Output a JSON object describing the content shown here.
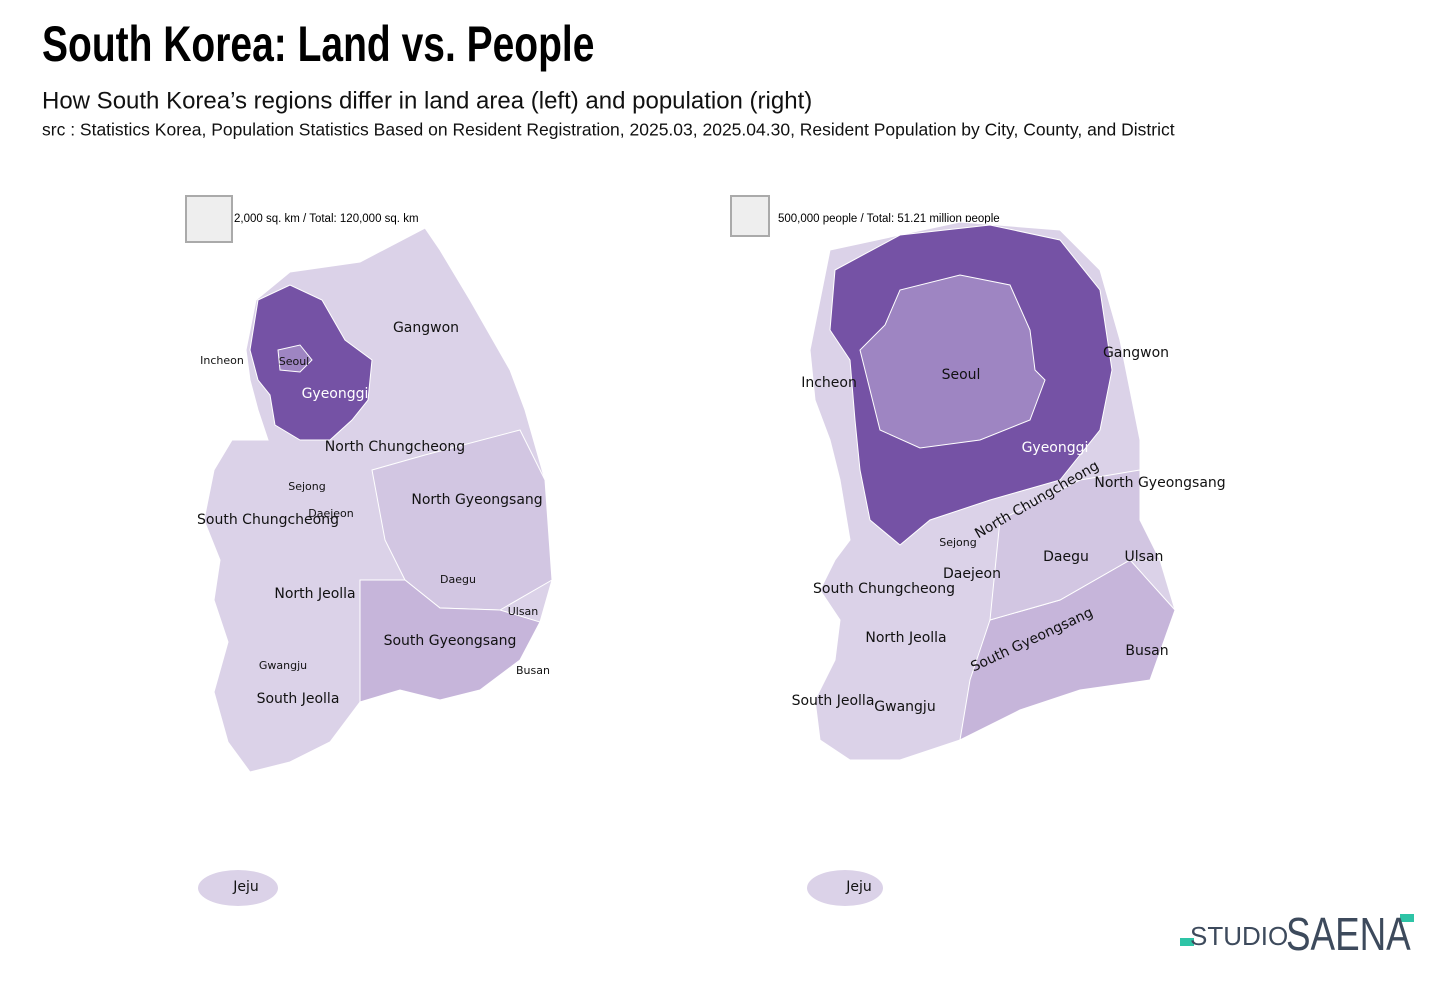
{
  "header": {
    "title": "South Korea: Land vs. People",
    "subtitle": "How South Korea’s regions differ in land area (left) and population (right)",
    "source": "src : Statistics Korea, Population Statistics Based on Resident Registration, 2025.03, 2025.04.30, Resident Population by City, County, and District"
  },
  "maps": [
    {
      "legend": "2,000 sq. km / Total: 120,000 sq. km",
      "regions": [
        "Gangwon",
        "Incheon",
        "Seoul",
        "Gyeonggi",
        "North Chungcheong",
        "Sejong",
        "Daejeon",
        "South Chungcheong",
        "North Gyeongsang",
        "North Jeolla",
        "Daegu",
        "Ulsan",
        "South Gyeongsang",
        "Gwangju",
        "Busan",
        "South Jeolla",
        "Jeju"
      ]
    },
    {
      "legend": "500,000 people / Total: 51.21 million people",
      "regions": [
        "Seoul",
        "Gyeonggi",
        "Gangwon",
        "Incheon",
        "North Chungcheong",
        "North Gyeongsang",
        "Sejong",
        "Daejeon",
        "Daegu",
        "Ulsan",
        "South Chungcheong",
        "North Jeolla",
        "South Gyeongsang",
        "Busan",
        "South Jeolla",
        "Gwangju",
        "Jeju"
      ]
    }
  ],
  "logo": {
    "studio": "STUDIO",
    "brand": "SAENA"
  }
}
